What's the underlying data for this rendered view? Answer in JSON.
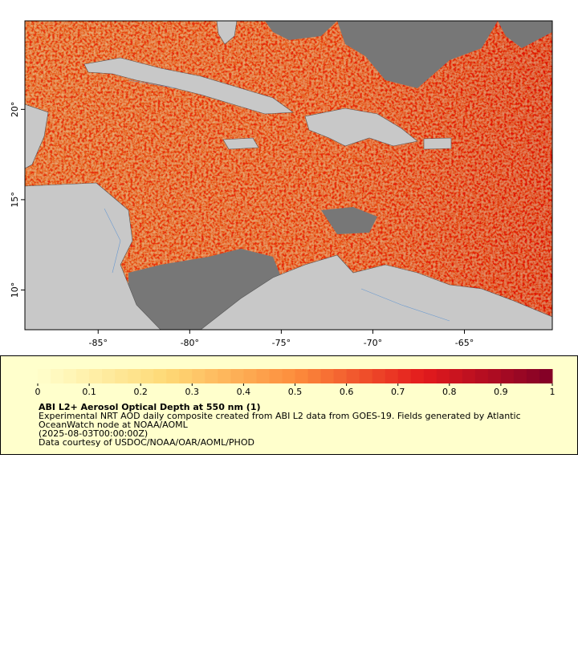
{
  "map": {
    "xlim": [
      -89,
      -60.2
    ],
    "ylim": [
      7.8,
      24.9
    ],
    "xticks": [
      {
        "value": -85,
        "label": "-85°"
      },
      {
        "value": -80,
        "label": "-80°"
      },
      {
        "value": -75,
        "label": "-75°"
      },
      {
        "value": -70,
        "label": "-70°"
      },
      {
        "value": -65,
        "label": "-65°"
      }
    ],
    "yticks": [
      {
        "value": 10,
        "label": "10°"
      },
      {
        "value": 15,
        "label": "15°"
      },
      {
        "value": 20,
        "label": "20°"
      }
    ]
  },
  "legend": {
    "range": [
      0,
      1
    ],
    "ticks": [
      0,
      0.1,
      0.2,
      0.3,
      0.4,
      0.5,
      0.6,
      0.7,
      0.8,
      0.9,
      1
    ],
    "title": "ABI L2+ Aerosol Optical Depth at 550 nm (1)",
    "lines": [
      "Experimental NRT AOD daily composite created from ABI L2 data from GOES-19. Fields generated by Atlantic",
      "OceanWatch node at NOAA/AOML",
      "(2025-08-03T00:00:00Z)",
      "Data courtesy of USDOC/NOAA/OAR/AOML/PHOD"
    ]
  }
}
